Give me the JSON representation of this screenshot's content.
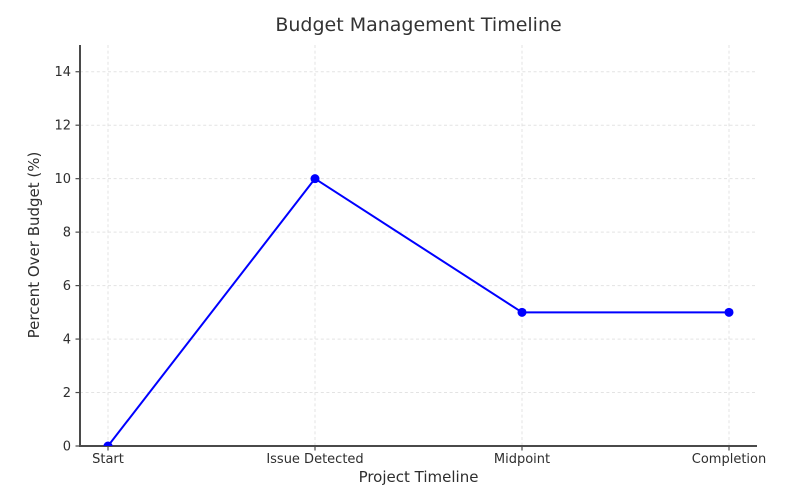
{
  "chart_data": {
    "type": "line",
    "title": "Budget Management Timeline",
    "xlabel": "Project Timeline",
    "ylabel": "Percent Over Budget (%)",
    "categories": [
      "Start",
      "Issue Detected",
      "Midpoint",
      "Completion"
    ],
    "series": [
      {
        "name": "Percent Over Budget",
        "values": [
          0,
          10,
          5,
          5
        ]
      }
    ],
    "ylim": [
      0,
      15
    ],
    "yticks": [
      0,
      2,
      4,
      6,
      8,
      10,
      12,
      14
    ],
    "grid": true,
    "grid_style": "dashed",
    "legend_position": "none",
    "line_color": "#0000ff",
    "marker": "circle",
    "grid_color": "#e3e3e3",
    "axis_color": "#4a4a4a",
    "text_color": "#2e2e2e",
    "title_color": "#333333",
    "background": "#ffffff"
  }
}
